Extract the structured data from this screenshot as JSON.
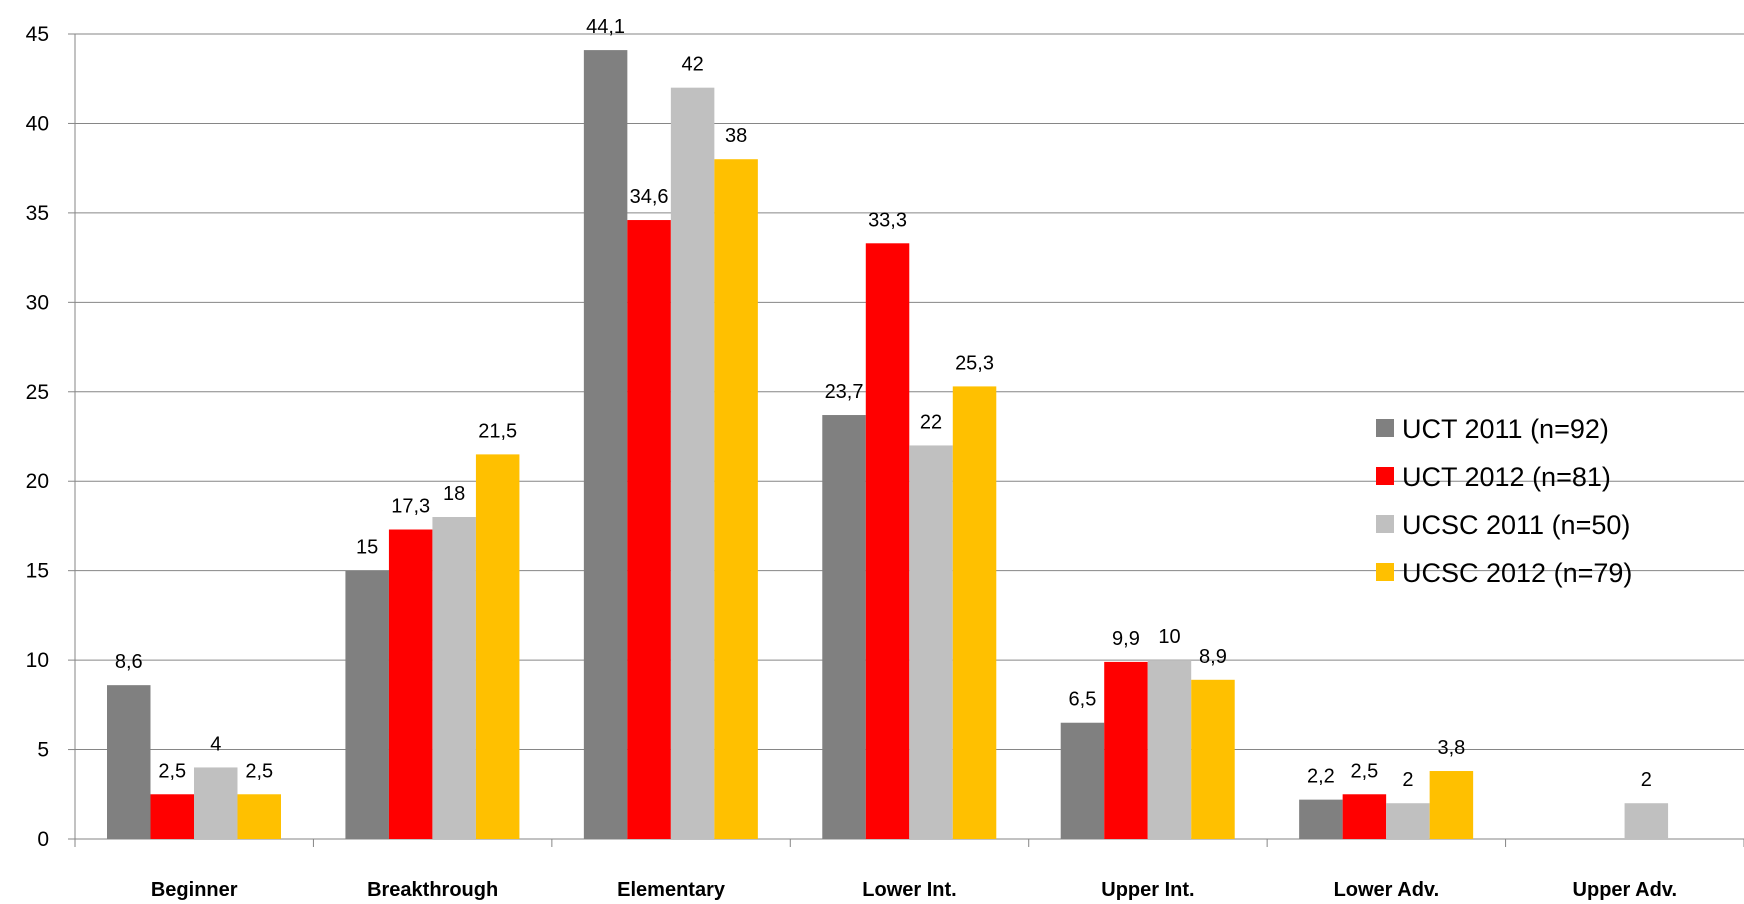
{
  "chart_data": {
    "type": "bar",
    "categories": [
      "Beginner",
      "Breakthrough",
      "Elementary",
      "Lower Int.",
      "Upper Int.",
      "Lower Adv.",
      "Upper Adv."
    ],
    "series": [
      {
        "name": "UCT 2011 (n=92)",
        "color": "#808080",
        "values": [
          8.6,
          15,
          44.1,
          23.7,
          6.5,
          2.2,
          null
        ],
        "labels": [
          "8,6",
          "15",
          "44,1",
          "23,7",
          "6,5",
          "2,2",
          null
        ]
      },
      {
        "name": "UCT 2012 (n=81)",
        "color": "#ff0000",
        "values": [
          2.5,
          17.3,
          34.6,
          33.3,
          9.9,
          2.5,
          null
        ],
        "labels": [
          "2,5",
          "17,3",
          "34,6",
          "33,3",
          "9,9",
          "2,5",
          null
        ]
      },
      {
        "name": "UCSC 2011 (n=50)",
        "color": "#c0c0c0",
        "values": [
          4,
          18,
          42,
          22,
          10,
          2,
          2
        ],
        "labels": [
          "4",
          "18",
          "42",
          "22",
          "10",
          "2",
          "2"
        ]
      },
      {
        "name": "UCSC 2012 (n=79)",
        "color": "#ffc000",
        "values": [
          2.5,
          21.5,
          38,
          25.3,
          8.9,
          3.8,
          null
        ],
        "labels": [
          "2,5",
          "21,5",
          "38",
          "25,3",
          "8,9",
          "3,8",
          null
        ]
      }
    ],
    "title": "",
    "xlabel": "",
    "ylabel": "",
    "ylim": [
      0,
      45
    ],
    "yticks": [
      "0",
      "5",
      "10",
      "15",
      "20",
      "25",
      "30",
      "35",
      "40",
      "45"
    ],
    "grid": true,
    "legend_position": "right"
  }
}
